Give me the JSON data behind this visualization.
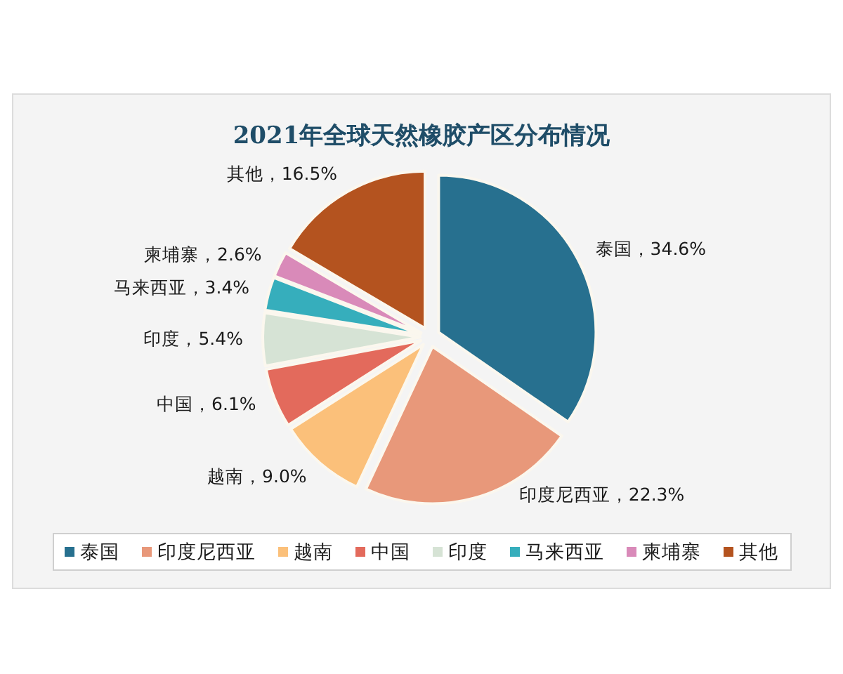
{
  "chart_data": {
    "type": "pie",
    "title": "2021年全球天然橡胶产区分布情况",
    "categories": [
      "泰国",
      "印度尼西亚",
      "越南",
      "中国",
      "印度",
      "马来西亚",
      "柬埔寨",
      "其他"
    ],
    "values": [
      34.6,
      22.3,
      9.0,
      6.1,
      5.4,
      3.4,
      2.6,
      16.5
    ],
    "colors": [
      "#27708f",
      "#e8987a",
      "#fbc07a",
      "#e36a5c",
      "#d6e3d5",
      "#36aebc",
      "#d98ab9",
      "#b4531f"
    ],
    "value_labels": [
      "，34.6%",
      "，22.3%",
      "，9.0%",
      "，6.1%",
      "，5.4%",
      "，3.4%",
      "，2.6%",
      "，16.5%"
    ],
    "legend": "bottom"
  }
}
